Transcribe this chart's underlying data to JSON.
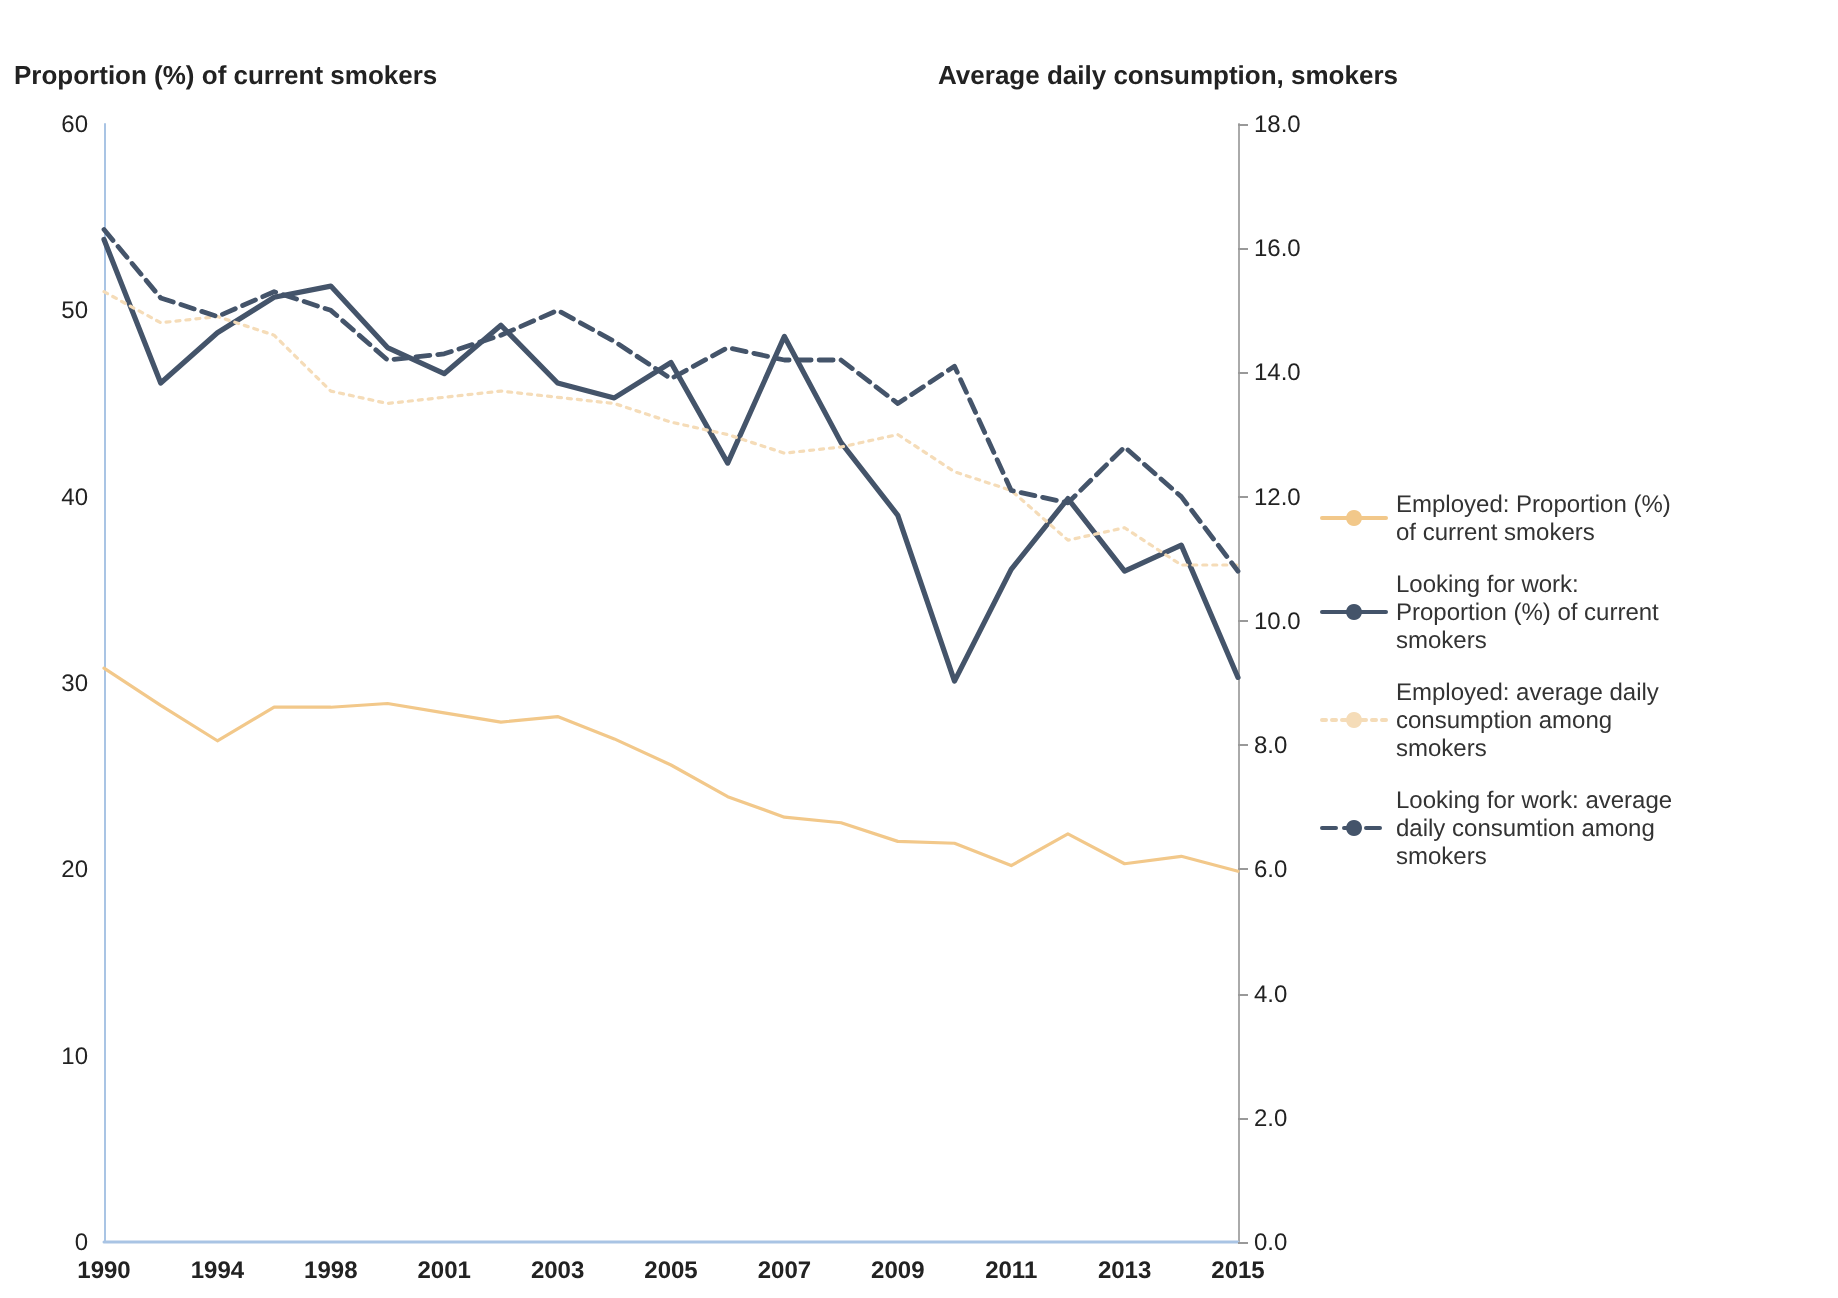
{
  "chart_data": {
    "type": "line",
    "ylabel": "Proportion (%) of current smokers",
    "y2label": "Average daily consumption, smokers",
    "categories": [
      "1990",
      null,
      "1994",
      null,
      "1998",
      null,
      "2001",
      null,
      "2003",
      null,
      "2005",
      null,
      "2007",
      null,
      "2009",
      null,
      "2011",
      null,
      "2013",
      null,
      "2015"
    ],
    "series": [
      {
        "name": "Employed: Proportion (%) of current smokers",
        "color": "#f2c88a",
        "line_style": "solid",
        "values": [
          30.8,
          28.8,
          26.9,
          28.7,
          28.7,
          28.9,
          28.4,
          27.9,
          28.2,
          27.0,
          25.6,
          23.9,
          22.8,
          22.5,
          21.5,
          21.4,
          20.2,
          21.9,
          20.3,
          20.7,
          19.9
        ]
      },
      {
        "name": "Looking for work: Proportion (%) of current smokers",
        "color": "#44546a",
        "line_style": "solid",
        "values": [
          53.8,
          46.1,
          48.8,
          50.7,
          51.3,
          48.0,
          46.6,
          49.2,
          46.1,
          45.3,
          47.2,
          41.8,
          48.6,
          42.9,
          39.0,
          30.1,
          36.1,
          39.9,
          36.0,
          37.4,
          30.3
        ]
      },
      {
        "name": "Employed: average daily consumption among smokers",
        "color": "#f5dcb8",
        "line_style": "dotted",
        "axis": "y2",
        "values": [
          15.3,
          14.8,
          14.9,
          14.6,
          13.7,
          13.5,
          13.6,
          13.7,
          13.6,
          13.5,
          13.2,
          13.0,
          12.7,
          12.8,
          13.0,
          12.4,
          12.1,
          11.3,
          11.5,
          10.9,
          10.9
        ]
      },
      {
        "name": "Looking for work: average daily consumtion among smokers",
        "color": "#44546a",
        "line_style": "dashed",
        "axis": "y2",
        "values": [
          16.3,
          15.2,
          14.9,
          15.3,
          15.0,
          14.2,
          14.3,
          14.6,
          15.0,
          14.5,
          13.9,
          14.4,
          14.2,
          14.2,
          13.5,
          14.1,
          12.1,
          11.9,
          12.8,
          12.0,
          10.8
        ]
      }
    ],
    "ylim": [
      0,
      60
    ],
    "yticks": [
      0,
      10,
      20,
      30,
      40,
      50,
      60
    ],
    "y2lim": [
      0,
      18
    ],
    "y2ticks": [
      {
        "value": 0,
        "label": "0.0"
      },
      {
        "value": 2,
        "label": "2.0"
      },
      {
        "value": 4,
        "label": "4.0"
      },
      {
        "value": 6,
        "label": "6.0"
      },
      {
        "value": 8,
        "label": "8.0"
      },
      {
        "value": 10,
        "label": "10.0"
      },
      {
        "value": 12,
        "label": "12.0"
      },
      {
        "value": 14,
        "label": "14.0"
      },
      {
        "value": 16,
        "label": "16.0"
      },
      {
        "value": 18,
        "label": "18.0"
      }
    ],
    "grid": false,
    "legend": "right",
    "marker": "none"
  }
}
